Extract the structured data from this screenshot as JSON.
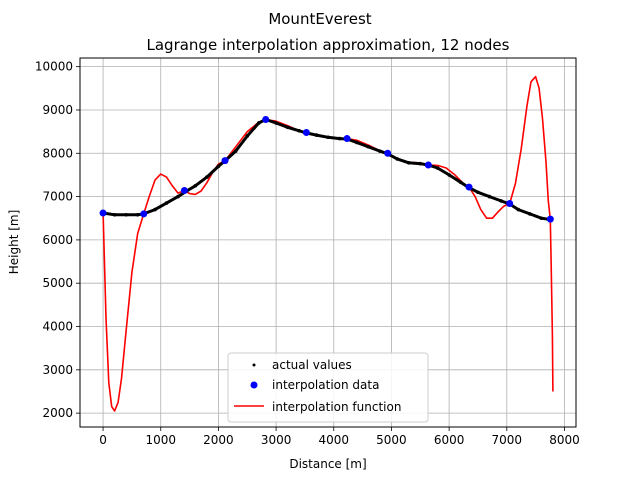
{
  "chart_data": {
    "type": "line",
    "suptitle": "MountEverest",
    "title": "Lagrange interpolation approximation, 12 nodes",
    "xlabel": "Distance [m]",
    "ylabel": "Height [m]",
    "xlim": [
      -400,
      8200
    ],
    "ylim": [
      1680,
      10200
    ],
    "xticks": [
      0,
      1000,
      2000,
      3000,
      4000,
      5000,
      6000,
      7000,
      8000
    ],
    "yticks": [
      2000,
      3000,
      4000,
      5000,
      6000,
      7000,
      8000,
      9000,
      10000
    ],
    "grid": true,
    "legend_position": "lower center",
    "legend": [
      "actual values",
      "interpolation data",
      "interpolation function"
    ],
    "colors": {
      "actual": "#000000",
      "nodes": "#0000ff",
      "interp": "#ff0000",
      "grid": "#b0b0b0"
    },
    "series": [
      {
        "name": "actual values",
        "style": "dots",
        "x": [
          0,
          200,
          400,
          600,
          700,
          900,
          1100,
          1300,
          1450,
          1600,
          1800,
          2000,
          2120,
          2300,
          2500,
          2700,
          2820,
          3000,
          3200,
          3400,
          3520,
          3700,
          3900,
          4100,
          4230,
          4400,
          4600,
          4800,
          4930,
          5100,
          5300,
          5500,
          5640,
          5800,
          6000,
          6200,
          6340,
          6500,
          6700,
          6900,
          7050,
          7200,
          7400,
          7600,
          7750
        ],
        "y": [
          6620,
          6580,
          6580,
          6580,
          6600,
          6700,
          6850,
          7000,
          7130,
          7250,
          7450,
          7700,
          7830,
          8050,
          8400,
          8700,
          8780,
          8700,
          8600,
          8520,
          8470,
          8420,
          8370,
          8340,
          8330,
          8250,
          8150,
          8050,
          7990,
          7870,
          7780,
          7760,
          7730,
          7660,
          7500,
          7330,
          7210,
          7100,
          7000,
          6900,
          6830,
          6700,
          6600,
          6500,
          6470
        ]
      },
      {
        "name": "interpolation data",
        "style": "markers",
        "x": [
          0,
          705,
          1410,
          2115,
          2820,
          3525,
          4230,
          4935,
          5640,
          6345,
          7050,
          7755
        ],
        "y": [
          6620,
          6600,
          7140,
          7830,
          8780,
          8480,
          8340,
          8000,
          7730,
          7220,
          6840,
          6480
        ]
      },
      {
        "name": "interpolation function",
        "style": "line",
        "x": [
          0,
          50,
          100,
          150,
          200,
          260,
          320,
          400,
          500,
          600,
          705,
          800,
          900,
          1000,
          1100,
          1200,
          1300,
          1410,
          1500,
          1600,
          1700,
          1800,
          1900,
          2000,
          2115,
          2300,
          2500,
          2700,
          2820,
          3000,
          3200,
          3400,
          3525,
          3700,
          3900,
          4100,
          4230,
          4400,
          4600,
          4800,
          4935,
          5100,
          5300,
          5500,
          5640,
          5800,
          5950,
          6100,
          6250,
          6345,
          6450,
          6550,
          6650,
          6750,
          6850,
          6950,
          7050,
          7150,
          7250,
          7350,
          7420,
          7500,
          7560,
          7620,
          7680,
          7720,
          7755,
          7770,
          7790,
          7800
        ],
        "y": [
          6620,
          4200,
          2700,
          2150,
          2050,
          2250,
          2800,
          3900,
          5250,
          6150,
          6600,
          7000,
          7380,
          7520,
          7450,
          7250,
          7080,
          7140,
          7070,
          7050,
          7130,
          7320,
          7560,
          7750,
          7830,
          8150,
          8500,
          8720,
          8780,
          8740,
          8640,
          8520,
          8480,
          8410,
          8360,
          8350,
          8340,
          8300,
          8190,
          8060,
          8000,
          7880,
          7790,
          7780,
          7730,
          7720,
          7660,
          7500,
          7300,
          7220,
          7000,
          6700,
          6500,
          6500,
          6650,
          6780,
          6840,
          7300,
          8100,
          9100,
          9650,
          9770,
          9500,
          8800,
          7800,
          6900,
          6480,
          5400,
          3800,
          2500
        ]
      }
    ]
  }
}
